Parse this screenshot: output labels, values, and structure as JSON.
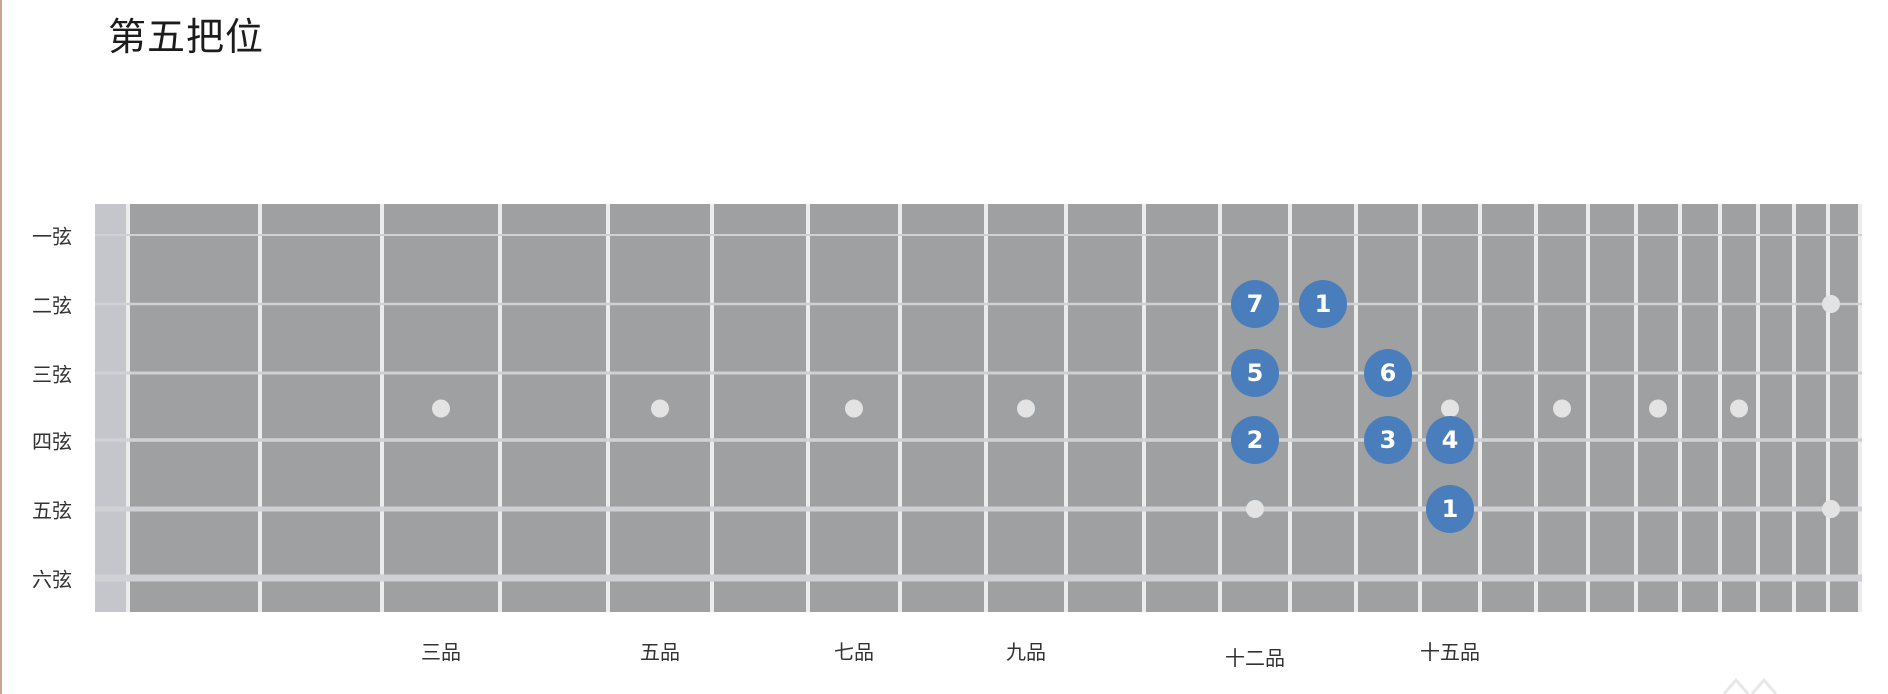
{
  "title": "第五把位",
  "strings": [
    "一弦",
    "二弦",
    "三弦",
    "四弦",
    "五弦",
    "六弦"
  ],
  "fret_labels": [
    {
      "fret": 3,
      "label": "三品"
    },
    {
      "fret": 5,
      "label": "五品"
    },
    {
      "fret": 7,
      "label": "七品"
    },
    {
      "fret": 9,
      "label": "九品"
    },
    {
      "fret": 12,
      "label": "十二品"
    },
    {
      "fret": 15,
      "label": "十五品"
    }
  ],
  "inlay_frets": [
    3,
    5,
    7,
    9,
    15,
    17,
    19,
    21
  ],
  "double_inlay_frets": [
    12,
    24
  ],
  "notes": [
    {
      "string": 2,
      "fret": 12,
      "label": "7"
    },
    {
      "string": 2,
      "fret": 13,
      "label": "1"
    },
    {
      "string": 3,
      "fret": 12,
      "label": "5"
    },
    {
      "string": 3,
      "fret": 14,
      "label": "6"
    },
    {
      "string": 4,
      "fret": 12,
      "label": "2"
    },
    {
      "string": 4,
      "fret": 14,
      "label": "3"
    },
    {
      "string": 4,
      "fret": 15,
      "label": "4"
    },
    {
      "string": 5,
      "fret": 15,
      "label": "1"
    }
  ],
  "colors": {
    "board": "#9fa0a2",
    "nut": "#c4c6cc",
    "fret_wire": "#ececec",
    "string_line": "#d0d1d4",
    "inlay": "#e3e3e3",
    "note_fill": "#4a7dbc",
    "note_text": "#ffffff"
  }
}
